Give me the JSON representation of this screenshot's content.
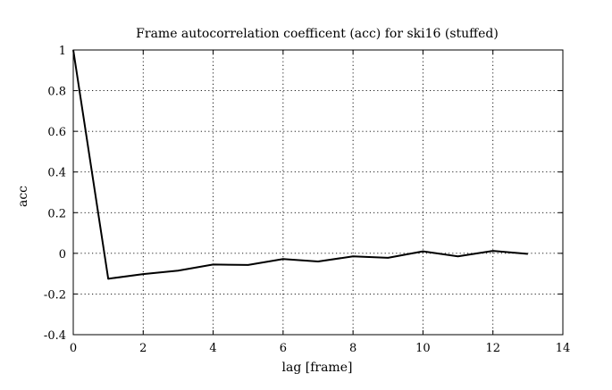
{
  "chart_data": {
    "type": "line",
    "title": "Frame autocorrelation coefficent (acc) for ski16 (stuffed)",
    "xlabel": "lag [frame]",
    "ylabel": "acc",
    "xlim": [
      0,
      14
    ],
    "ylim": [
      -0.4,
      1
    ],
    "xticks": [
      0,
      2,
      4,
      6,
      8,
      10,
      12,
      14
    ],
    "yticks": [
      -0.4,
      -0.2,
      0,
      0.2,
      0.4,
      0.6,
      0.8,
      1
    ],
    "xtick_labels": [
      "0",
      "2",
      "4",
      "6",
      "8",
      "10",
      "12",
      "14"
    ],
    "ytick_labels": [
      "-0.4",
      "-0.2",
      "0",
      "0.2",
      "0.4",
      "0.6",
      "0.8",
      "1"
    ],
    "grid": true,
    "legend": "none",
    "series": [
      {
        "color": "#000000",
        "x": [
          0,
          1,
          2,
          3,
          4,
          5,
          6,
          7,
          8,
          9,
          10,
          11,
          12,
          13
        ],
        "y": [
          1.0,
          -0.125,
          -0.102,
          -0.085,
          -0.055,
          -0.057,
          -0.028,
          -0.04,
          -0.015,
          -0.022,
          0.01,
          -0.015,
          0.012,
          -0.003
        ]
      }
    ]
  }
}
